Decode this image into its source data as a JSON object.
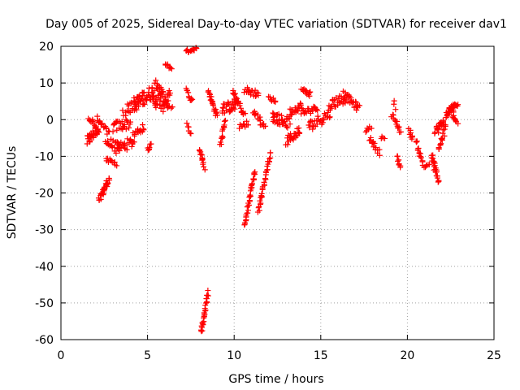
{
  "chart_data": {
    "type": "scatter",
    "title": "Day 005 of 2025, Sidereal Day-to-day VTEC variation (SDTVAR) for receiver dav1",
    "xlabel": "GPS time / hours",
    "ylabel": "SDTVAR / TECUs",
    "xlim": [
      0,
      25
    ],
    "ylim": [
      -60,
      20
    ],
    "xticks": [
      0,
      5,
      10,
      15,
      20,
      25
    ],
    "yticks": [
      -60,
      -50,
      -40,
      -30,
      -20,
      -10,
      0,
      10,
      20
    ],
    "grid": true,
    "marker": "+",
    "color": "#ff0000",
    "segments": [
      {
        "x0": 1.5,
        "y0": -6,
        "x1": 2.2,
        "y1": -2,
        "n": 30,
        "spread": 3
      },
      {
        "x0": 1.6,
        "y0": 1,
        "x1": 2.0,
        "y1": -2,
        "n": 10,
        "spread": 2
      },
      {
        "x0": 2.1,
        "y0": 0,
        "x1": 2.8,
        "y1": -4,
        "n": 15,
        "spread": 2
      },
      {
        "x0": 2.2,
        "y0": -22,
        "x1": 2.8,
        "y1": -16,
        "n": 30,
        "spread": 2
      },
      {
        "x0": 2.6,
        "y0": -11,
        "x1": 3.2,
        "y1": -12,
        "n": 12,
        "spread": 1.2
      },
      {
        "x0": 2.6,
        "y0": -6,
        "x1": 3.4,
        "y1": -8,
        "n": 20,
        "spread": 3
      },
      {
        "x0": 3.0,
        "y0": -2,
        "x1": 4.0,
        "y1": -1,
        "n": 25,
        "spread": 3
      },
      {
        "x0": 3.2,
        "y0": -8,
        "x1": 4.2,
        "y1": -6,
        "n": 25,
        "spread": 3
      },
      {
        "x0": 3.6,
        "y0": 2,
        "x1": 4.5,
        "y1": 5,
        "n": 20,
        "spread": 3
      },
      {
        "x0": 4.2,
        "y0": -4,
        "x1": 4.8,
        "y1": -2,
        "n": 15,
        "spread": 2
      },
      {
        "x0": 4.2,
        "y0": 4,
        "x1": 5.4,
        "y1": 8,
        "n": 45,
        "spread": 4
      },
      {
        "x0": 5.0,
        "y0": -8,
        "x1": 5.2,
        "y1": -7,
        "n": 8,
        "spread": 1
      },
      {
        "x0": 5.3,
        "y0": 5,
        "x1": 6.3,
        "y1": 6,
        "n": 40,
        "spread": 4
      },
      {
        "x0": 5.4,
        "y0": 10,
        "x1": 5.9,
        "y1": 7,
        "n": 15,
        "spread": 2
      },
      {
        "x0": 6.0,
        "y0": 15,
        "x1": 6.4,
        "y1": 14,
        "n": 10,
        "spread": 1
      },
      {
        "x0": 5.8,
        "y0": 3,
        "x1": 6.4,
        "y1": 4,
        "n": 10,
        "spread": 2
      },
      {
        "x0": 7.2,
        "y0": 18.5,
        "x1": 7.8,
        "y1": 19.5,
        "n": 15,
        "spread": 1
      },
      {
        "x0": 7.2,
        "y0": 8,
        "x1": 7.6,
        "y1": 5,
        "n": 10,
        "spread": 1.5
      },
      {
        "x0": 7.3,
        "y0": -1,
        "x1": 7.5,
        "y1": -4,
        "n": 6,
        "spread": 1
      },
      {
        "x0": 8.0,
        "y0": -8,
        "x1": 8.3,
        "y1": -13,
        "n": 14,
        "spread": 1.5
      },
      {
        "x0": 8.1,
        "y0": -58,
        "x1": 8.5,
        "y1": -47,
        "n": 28,
        "spread": 1
      },
      {
        "x0": 8.5,
        "y0": 8,
        "x1": 9.0,
        "y1": 1,
        "n": 22,
        "spread": 1.5
      },
      {
        "x0": 9.2,
        "y0": -7,
        "x1": 9.5,
        "y1": 0,
        "n": 15,
        "spread": 1.5
      },
      {
        "x0": 9.3,
        "y0": 3,
        "x1": 10.2,
        "y1": 4,
        "n": 30,
        "spread": 3
      },
      {
        "x0": 9.9,
        "y0": 8,
        "x1": 10.6,
        "y1": 1,
        "n": 20,
        "spread": 2
      },
      {
        "x0": 10.3,
        "y0": -2,
        "x1": 10.8,
        "y1": -1,
        "n": 10,
        "spread": 1.5
      },
      {
        "x0": 10.6,
        "y0": -29,
        "x1": 11.2,
        "y1": -14,
        "n": 35,
        "spread": 1
      },
      {
        "x0": 10.6,
        "y0": 8,
        "x1": 11.4,
        "y1": 7,
        "n": 20,
        "spread": 2
      },
      {
        "x0": 11.1,
        "y0": 2,
        "x1": 11.5,
        "y1": 0,
        "n": 10,
        "spread": 1.5
      },
      {
        "x0": 11.4,
        "y0": -25,
        "x1": 12.1,
        "y1": -9,
        "n": 35,
        "spread": 1
      },
      {
        "x0": 11.5,
        "y0": -1,
        "x1": 11.8,
        "y1": -2,
        "n": 6,
        "spread": 1
      },
      {
        "x0": 12.0,
        "y0": 6,
        "x1": 12.4,
        "y1": 5,
        "n": 8,
        "spread": 1
      },
      {
        "x0": 12.2,
        "y0": 1,
        "x1": 13.2,
        "y1": -1,
        "n": 35,
        "spread": 3
      },
      {
        "x0": 13.0,
        "y0": -6,
        "x1": 13.8,
        "y1": -3,
        "n": 25,
        "spread": 2.5
      },
      {
        "x0": 13.2,
        "y0": 2,
        "x1": 13.9,
        "y1": 4,
        "n": 20,
        "spread": 2
      },
      {
        "x0": 13.9,
        "y0": 8,
        "x1": 14.4,
        "y1": 7,
        "n": 15,
        "spread": 1.5
      },
      {
        "x0": 13.9,
        "y0": 2,
        "x1": 14.8,
        "y1": 3,
        "n": 20,
        "spread": 2
      },
      {
        "x0": 14.3,
        "y0": -2,
        "x1": 15.6,
        "y1": 2,
        "n": 30,
        "spread": 3
      },
      {
        "x0": 15.5,
        "y0": 4,
        "x1": 16.4,
        "y1": 6,
        "n": 25,
        "spread": 3
      },
      {
        "x0": 16.3,
        "y0": 7,
        "x1": 17.2,
        "y1": 3,
        "n": 30,
        "spread": 2
      },
      {
        "x0": 17.6,
        "y0": -3,
        "x1": 17.9,
        "y1": -2,
        "n": 6,
        "spread": 1
      },
      {
        "x0": 17.8,
        "y0": -5,
        "x1": 18.4,
        "y1": -9,
        "n": 14,
        "spread": 1.5
      },
      {
        "x0": 18.5,
        "y0": -5,
        "x1": 18.7,
        "y1": -5,
        "n": 4,
        "spread": 1
      },
      {
        "x0": 19.1,
        "y0": 1,
        "x1": 19.6,
        "y1": -3,
        "n": 14,
        "spread": 2
      },
      {
        "x0": 19.2,
        "y0": 5,
        "x1": 19.3,
        "y1": 3,
        "n": 3,
        "spread": 1
      },
      {
        "x0": 19.4,
        "y0": -10,
        "x1": 19.6,
        "y1": -13,
        "n": 8,
        "spread": 1
      },
      {
        "x0": 20.1,
        "y0": -3,
        "x1": 20.3,
        "y1": -5,
        "n": 8,
        "spread": 1.5
      },
      {
        "x0": 20.5,
        "y0": -6,
        "x1": 20.9,
        "y1": -12,
        "n": 15,
        "spread": 1.5
      },
      {
        "x0": 21.0,
        "y0": -13,
        "x1": 21.3,
        "y1": -12,
        "n": 6,
        "spread": 1
      },
      {
        "x0": 21.4,
        "y0": -10,
        "x1": 21.8,
        "y1": -17,
        "n": 25,
        "spread": 2
      },
      {
        "x0": 21.6,
        "y0": -3,
        "x1": 22.2,
        "y1": -1,
        "n": 25,
        "spread": 3
      },
      {
        "x0": 21.8,
        "y0": -8,
        "x1": 22.1,
        "y1": -4,
        "n": 12,
        "spread": 2
      },
      {
        "x0": 22.2,
        "y0": 1,
        "x1": 22.7,
        "y1": 3,
        "n": 20,
        "spread": 1.5
      },
      {
        "x0": 22.4,
        "y0": 3,
        "x1": 22.9,
        "y1": 4,
        "n": 15,
        "spread": 1.5
      },
      {
        "x0": 22.6,
        "y0": 1,
        "x1": 22.9,
        "y1": -1,
        "n": 8,
        "spread": 1
      }
    ]
  }
}
